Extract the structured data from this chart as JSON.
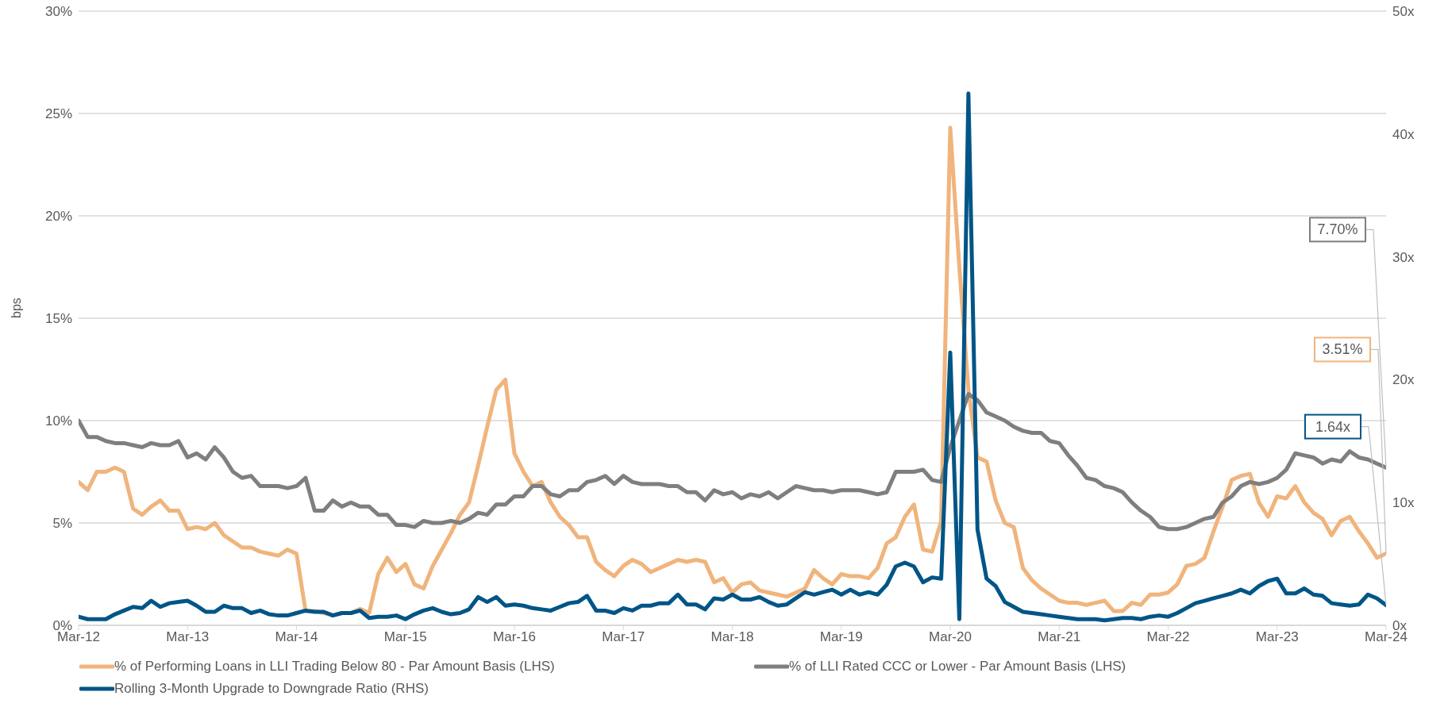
{
  "chart_data": {
    "type": "line",
    "ylabel": "bps",
    "grid": "y",
    "legend": "bottom",
    "marker": "none",
    "line_style": "solid",
    "xlim": [
      "2012-03",
      "2024-03"
    ],
    "xticks": [
      {
        "value": "2012-03",
        "label": "Mar-12"
      },
      {
        "value": "2013-03",
        "label": "Mar-13"
      },
      {
        "value": "2014-03",
        "label": "Mar-14"
      },
      {
        "value": "2015-03",
        "label": "Mar-15"
      },
      {
        "value": "2016-03",
        "label": "Mar-16"
      },
      {
        "value": "2017-03",
        "label": "Mar-17"
      },
      {
        "value": "2018-03",
        "label": "Mar-18"
      },
      {
        "value": "2019-03",
        "label": "Mar-19"
      },
      {
        "value": "2020-03",
        "label": "Mar-20"
      },
      {
        "value": "2021-03",
        "label": "Mar-21"
      },
      {
        "value": "2022-03",
        "label": "Mar-22"
      },
      {
        "value": "2023-03",
        "label": "Mar-23"
      },
      {
        "value": "2024-03",
        "label": "Mar-24"
      }
    ],
    "ylim": [
      0,
      30
    ],
    "yticks": [
      {
        "value": 0,
        "label": "0%"
      },
      {
        "value": 5,
        "label": "5%"
      },
      {
        "value": 10,
        "label": "10%"
      },
      {
        "value": 15,
        "label": "15%"
      },
      {
        "value": 20,
        "label": "20%"
      },
      {
        "value": 25,
        "label": "25%"
      },
      {
        "value": 30,
        "label": "30%"
      }
    ],
    "y2lim": [
      0,
      50
    ],
    "y2ticks": [
      {
        "value": 0,
        "label": "0x"
      },
      {
        "value": 10,
        "label": "10x"
      },
      {
        "value": 20,
        "label": "20x"
      },
      {
        "value": 30,
        "label": "30x"
      },
      {
        "value": 40,
        "label": "40x"
      },
      {
        "value": 50,
        "label": "50x"
      }
    ],
    "x": [
      "2012-03",
      "2012-04",
      "2012-05",
      "2012-06",
      "2012-07",
      "2012-08",
      "2012-09",
      "2012-10",
      "2012-11",
      "2012-12",
      "2013-01",
      "2013-02",
      "2013-03",
      "2013-04",
      "2013-05",
      "2013-06",
      "2013-07",
      "2013-08",
      "2013-09",
      "2013-10",
      "2013-11",
      "2013-12",
      "2014-01",
      "2014-02",
      "2014-03",
      "2014-04",
      "2014-05",
      "2014-06",
      "2014-07",
      "2014-08",
      "2014-09",
      "2014-10",
      "2014-11",
      "2014-12",
      "2015-01",
      "2015-02",
      "2015-03",
      "2015-04",
      "2015-05",
      "2015-06",
      "2015-07",
      "2015-08",
      "2015-09",
      "2015-10",
      "2015-11",
      "2015-12",
      "2016-01",
      "2016-02",
      "2016-03",
      "2016-04",
      "2016-05",
      "2016-06",
      "2016-07",
      "2016-08",
      "2016-09",
      "2016-10",
      "2016-11",
      "2016-12",
      "2017-01",
      "2017-02",
      "2017-03",
      "2017-04",
      "2017-05",
      "2017-06",
      "2017-07",
      "2017-08",
      "2017-09",
      "2017-10",
      "2017-11",
      "2017-12",
      "2018-01",
      "2018-02",
      "2018-03",
      "2018-04",
      "2018-05",
      "2018-06",
      "2018-07",
      "2018-08",
      "2018-09",
      "2018-10",
      "2018-11",
      "2018-12",
      "2019-01",
      "2019-02",
      "2019-03",
      "2019-04",
      "2019-05",
      "2019-06",
      "2019-07",
      "2019-08",
      "2019-09",
      "2019-10",
      "2019-11",
      "2019-12",
      "2020-01",
      "2020-02",
      "2020-03",
      "2020-04",
      "2020-05",
      "2020-06",
      "2020-07",
      "2020-08",
      "2020-09",
      "2020-10",
      "2020-11",
      "2020-12",
      "2021-01",
      "2021-02",
      "2021-03",
      "2021-04",
      "2021-05",
      "2021-06",
      "2021-07",
      "2021-08",
      "2021-09",
      "2021-10",
      "2021-11",
      "2021-12",
      "2022-01",
      "2022-02",
      "2022-03",
      "2022-04",
      "2022-05",
      "2022-06",
      "2022-07",
      "2022-08",
      "2022-09",
      "2022-10",
      "2022-11",
      "2022-12",
      "2023-01",
      "2023-02",
      "2023-03",
      "2023-04",
      "2023-05",
      "2023-06",
      "2023-07",
      "2023-08",
      "2023-09",
      "2023-10",
      "2023-11",
      "2023-12",
      "2024-01",
      "2024-02",
      "2024-03"
    ],
    "series": [
      {
        "name": "% of Performing Loans in LLI Trading Below 80 - Par Amount Basis (LHS)",
        "color": "#f0b47c",
        "values": [
          7.0,
          6.6,
          7.5,
          7.5,
          7.7,
          7.5,
          5.7,
          5.4,
          5.8,
          6.1,
          5.6,
          5.6,
          4.7,
          4.8,
          4.7,
          5.0,
          4.4,
          4.1,
          3.8,
          3.8,
          3.6,
          3.5,
          3.4,
          3.7,
          3.5,
          0.7,
          0.7,
          0.6,
          0.5,
          0.6,
          0.6,
          0.8,
          0.6,
          2.5,
          3.3,
          2.6,
          3.0,
          2.0,
          1.8,
          2.9,
          3.7,
          4.5,
          5.4,
          6.0,
          7.8,
          9.7,
          11.5,
          12.0,
          8.4,
          7.5,
          6.8,
          7.0,
          6.0,
          5.3,
          4.9,
          4.3,
          4.3,
          3.1,
          2.7,
          2.4,
          2.9,
          3.2,
          3.0,
          2.6,
          2.8,
          3.0,
          3.2,
          3.1,
          3.2,
          3.1,
          2.1,
          2.3,
          1.6,
          2.0,
          2.1,
          1.7,
          1.6,
          1.5,
          1.4,
          1.6,
          1.8,
          2.7,
          2.3,
          2.0,
          2.5,
          2.4,
          2.4,
          2.3,
          2.8,
          4.0,
          4.3,
          5.3,
          5.9,
          3.7,
          3.6,
          5.1,
          24.3,
          17.5,
          11.5,
          8.2,
          8.0,
          6.1,
          5.0,
          4.8,
          2.8,
          2.2,
          1.8,
          1.5,
          1.2,
          1.1,
          1.1,
          1.0,
          1.1,
          1.2,
          0.7,
          0.7,
          1.1,
          1.0,
          1.5,
          1.5,
          1.6,
          2.0,
          2.9,
          3.0,
          3.3,
          4.6,
          5.8,
          7.1,
          7.3,
          7.4,
          6.0,
          5.3,
          6.3,
          6.2,
          6.8,
          6.0,
          5.5,
          5.2,
          4.4,
          5.1,
          5.3,
          4.6,
          4.0,
          3.3,
          3.51
        ],
        "value_labels": [
          null,
          null,
          null,
          null,
          null,
          null,
          null,
          null,
          null,
          null,
          null,
          null,
          null,
          null,
          null,
          null,
          null,
          null,
          null,
          null,
          null,
          null,
          null,
          null,
          null,
          null,
          null,
          null,
          null,
          null,
          null,
          null,
          null,
          null,
          null,
          null,
          null,
          null,
          null,
          null,
          null,
          null,
          null,
          null,
          null,
          null,
          null,
          null,
          null,
          null,
          null,
          null,
          null,
          null,
          null,
          null,
          null,
          null,
          null,
          null,
          null,
          null,
          null,
          null,
          null,
          null,
          null,
          null,
          null,
          null,
          null,
          null,
          null,
          null,
          null,
          null,
          null,
          null,
          null,
          null,
          null,
          null,
          null,
          null,
          null,
          null,
          null,
          null,
          null,
          null,
          null,
          null,
          null,
          null,
          null,
          null,
          null,
          null,
          null,
          null,
          null,
          null,
          null,
          null,
          null,
          null,
          null,
          null,
          null,
          null,
          null,
          null,
          null,
          null,
          null,
          null,
          null,
          null,
          null,
          null,
          null,
          null,
          null,
          null,
          null,
          null,
          null,
          null,
          null,
          null,
          null,
          null,
          null,
          null,
          null,
          null,
          null,
          null,
          null,
          null,
          null,
          null,
          null,
          null,
          "3.51%"
        ]
      },
      {
        "name": "% of LLI Rated CCC or Lower - Par Amount Basis (LHS)",
        "color": "#7f7f7f",
        "values": [
          10.0,
          9.2,
          9.2,
          9.0,
          8.9,
          8.9,
          8.8,
          8.7,
          8.9,
          8.8,
          8.8,
          9.0,
          8.2,
          8.4,
          8.1,
          8.7,
          8.2,
          7.5,
          7.2,
          7.3,
          6.8,
          6.8,
          6.8,
          6.7,
          6.8,
          7.2,
          5.6,
          5.6,
          6.1,
          5.8,
          6.0,
          5.8,
          5.8,
          5.4,
          5.4,
          4.9,
          4.9,
          4.8,
          5.1,
          5.0,
          5.0,
          5.1,
          5.0,
          5.2,
          5.5,
          5.4,
          5.9,
          5.9,
          6.3,
          6.3,
          6.8,
          6.8,
          6.4,
          6.3,
          6.6,
          6.6,
          7.0,
          7.1,
          7.3,
          6.9,
          7.3,
          7.0,
          6.9,
          6.9,
          6.9,
          6.8,
          6.8,
          6.5,
          6.5,
          6.1,
          6.6,
          6.4,
          6.5,
          6.2,
          6.4,
          6.3,
          6.5,
          6.2,
          6.5,
          6.8,
          6.7,
          6.6,
          6.6,
          6.5,
          6.6,
          6.6,
          6.6,
          6.5,
          6.4,
          6.5,
          7.5,
          7.5,
          7.5,
          7.6,
          7.1,
          7.0,
          8.7,
          10.0,
          11.3,
          11.0,
          10.4,
          10.2,
          10.0,
          9.7,
          9.5,
          9.4,
          9.4,
          9.0,
          8.9,
          8.3,
          7.8,
          7.2,
          7.1,
          6.8,
          6.7,
          6.5,
          6.0,
          5.6,
          5.3,
          4.8,
          4.7,
          4.7,
          4.8,
          5.0,
          5.2,
          5.3,
          6.0,
          6.3,
          6.8,
          7.0,
          6.9,
          7.0,
          7.2,
          7.6,
          8.4,
          8.3,
          8.2,
          7.9,
          8.1,
          8.0,
          8.5,
          8.2,
          8.1,
          7.9,
          7.7
        ],
        "value_labels": [
          null,
          null,
          null,
          null,
          null,
          null,
          null,
          null,
          null,
          null,
          null,
          null,
          null,
          null,
          null,
          null,
          null,
          null,
          null,
          null,
          null,
          null,
          null,
          null,
          null,
          null,
          null,
          null,
          null,
          null,
          null,
          null,
          null,
          null,
          null,
          null,
          null,
          null,
          null,
          null,
          null,
          null,
          null,
          null,
          null,
          null,
          null,
          null,
          null,
          null,
          null,
          null,
          null,
          null,
          null,
          null,
          null,
          null,
          null,
          null,
          null,
          null,
          null,
          null,
          null,
          null,
          null,
          null,
          null,
          null,
          null,
          null,
          null,
          null,
          null,
          null,
          null,
          null,
          null,
          null,
          null,
          null,
          null,
          null,
          null,
          null,
          null,
          null,
          null,
          null,
          null,
          null,
          null,
          null,
          null,
          null,
          null,
          null,
          null,
          null,
          null,
          null,
          null,
          null,
          null,
          null,
          null,
          null,
          null,
          null,
          null,
          null,
          null,
          null,
          null,
          null,
          null,
          null,
          null,
          null,
          null,
          null,
          null,
          null,
          null,
          null,
          null,
          null,
          null,
          null,
          null,
          null,
          null,
          null,
          null,
          null,
          null,
          null,
          null,
          null,
          null,
          null,
          null,
          null,
          "7.70%"
        ]
      },
      {
        "name": "Rolling 3-Month Upgrade to Downgrade Ratio (RHS)",
        "color": "#005587",
        "axis": "y2",
        "values": [
          0.7,
          0.5,
          0.5,
          0.5,
          0.9,
          1.2,
          1.5,
          1.4,
          2.0,
          1.5,
          1.8,
          1.9,
          2.0,
          1.6,
          1.1,
          1.1,
          1.6,
          1.4,
          1.4,
          1.0,
          1.2,
          0.9,
          0.8,
          0.8,
          1.0,
          1.2,
          1.1,
          1.1,
          0.8,
          1.0,
          1.0,
          1.2,
          0.6,
          0.7,
          0.7,
          0.8,
          0.5,
          0.9,
          1.2,
          1.4,
          1.1,
          0.9,
          1.0,
          1.3,
          2.3,
          1.9,
          2.3,
          1.6,
          1.7,
          1.6,
          1.4,
          1.3,
          1.2,
          1.5,
          1.8,
          1.9,
          2.4,
          1.2,
          1.2,
          1.0,
          1.4,
          1.2,
          1.6,
          1.6,
          1.8,
          1.8,
          2.5,
          1.7,
          1.7,
          1.3,
          2.2,
          2.1,
          2.5,
          2.1,
          2.1,
          2.3,
          1.9,
          1.6,
          1.7,
          2.2,
          2.7,
          2.5,
          2.7,
          2.9,
          2.5,
          2.9,
          2.5,
          2.7,
          2.5,
          3.3,
          4.8,
          5.1,
          4.8,
          3.5,
          3.9,
          3.8,
          22.2,
          0.5,
          43.3,
          7.8,
          3.8,
          3.2,
          1.9,
          1.5,
          1.1,
          1.0,
          0.9,
          0.8,
          0.7,
          0.6,
          0.5,
          0.5,
          0.5,
          0.4,
          0.5,
          0.6,
          0.6,
          0.5,
          0.7,
          0.8,
          0.7,
          1.0,
          1.4,
          1.8,
          2.0,
          2.2,
          2.4,
          2.6,
          2.9,
          2.6,
          3.2,
          3.6,
          3.8,
          2.6,
          2.6,
          3.0,
          2.5,
          2.4,
          1.8,
          1.7,
          1.6,
          1.7,
          2.5,
          2.2,
          1.64
        ],
        "value_labels": [
          null,
          null,
          null,
          null,
          null,
          null,
          null,
          null,
          null,
          null,
          null,
          null,
          null,
          null,
          null,
          null,
          null,
          null,
          null,
          null,
          null,
          null,
          null,
          null,
          null,
          null,
          null,
          null,
          null,
          null,
          null,
          null,
          null,
          null,
          null,
          null,
          null,
          null,
          null,
          null,
          null,
          null,
          null,
          null,
          null,
          null,
          null,
          null,
          null,
          null,
          null,
          null,
          null,
          null,
          null,
          null,
          null,
          null,
          null,
          null,
          null,
          null,
          null,
          null,
          null,
          null,
          null,
          null,
          null,
          null,
          null,
          null,
          null,
          null,
          null,
          null,
          null,
          null,
          null,
          null,
          null,
          null,
          null,
          null,
          null,
          null,
          null,
          null,
          null,
          null,
          null,
          null,
          null,
          null,
          null,
          null,
          null,
          null,
          null,
          null,
          null,
          null,
          null,
          null,
          null,
          null,
          null,
          null,
          null,
          null,
          null,
          null,
          null,
          null,
          null,
          null,
          null,
          null,
          null,
          null,
          null,
          null,
          null,
          null,
          null,
          null,
          null,
          null,
          null,
          null,
          null,
          null,
          null,
          null,
          null,
          null,
          null,
          null,
          null,
          null,
          null,
          null,
          null,
          null,
          "1.64x"
        ]
      }
    ]
  }
}
